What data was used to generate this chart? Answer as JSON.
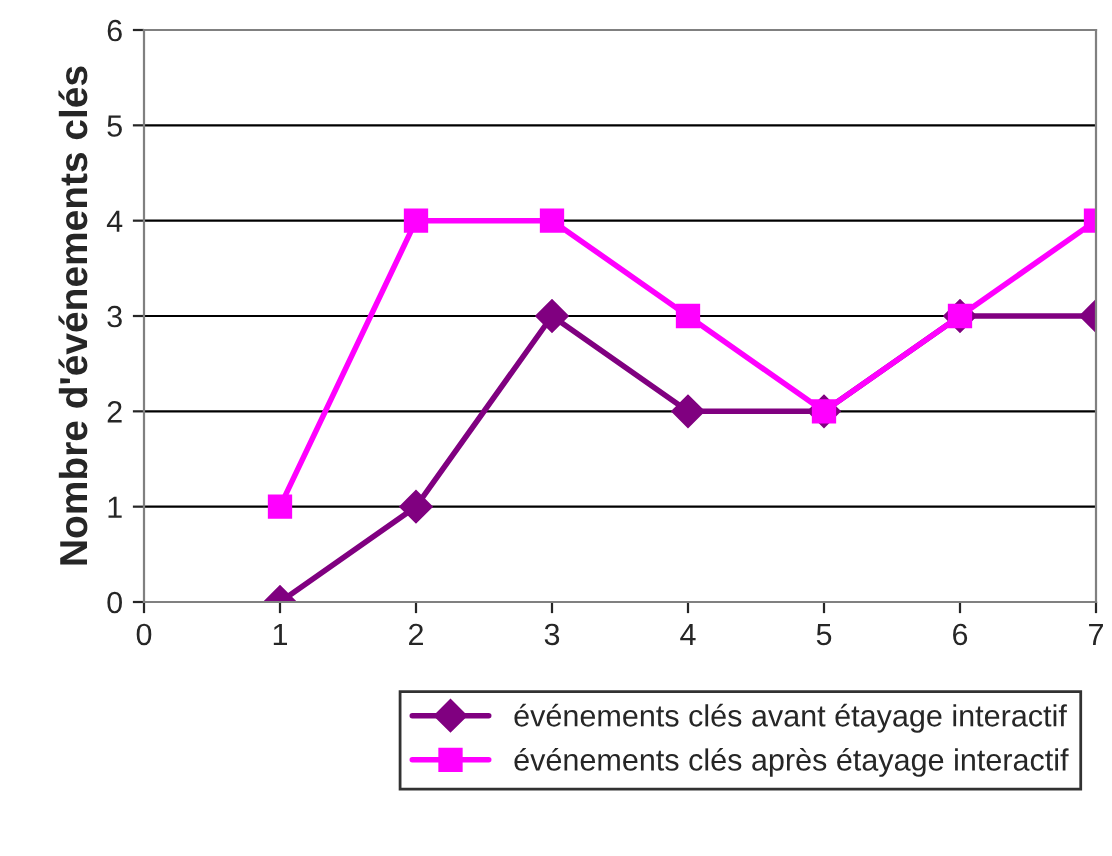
{
  "chart_data": {
    "type": "line",
    "ylabel": "Nombre d'événements clés",
    "x": [
      1,
      2,
      3,
      4,
      5,
      6,
      7
    ],
    "series": [
      {
        "name": "événements clés avant étayage interactif",
        "color": "#800080",
        "marker": "diamond",
        "values": [
          0,
          1,
          3,
          2,
          2,
          3,
          3
        ]
      },
      {
        "name": "événements clés après étayage interactif",
        "color": "#ff00ff",
        "marker": "square",
        "values": [
          1,
          4,
          4,
          3,
          2,
          3,
          4
        ]
      }
    ],
    "xlim": [
      0,
      7
    ],
    "xticks": [
      0,
      1,
      2,
      3,
      4,
      5,
      6,
      7
    ],
    "ylim": [
      0,
      6
    ],
    "yticks": [
      0,
      1,
      2,
      3,
      4,
      5,
      6
    ],
    "grid": "y",
    "legend": "bottom",
    "line_style": "solid"
  }
}
